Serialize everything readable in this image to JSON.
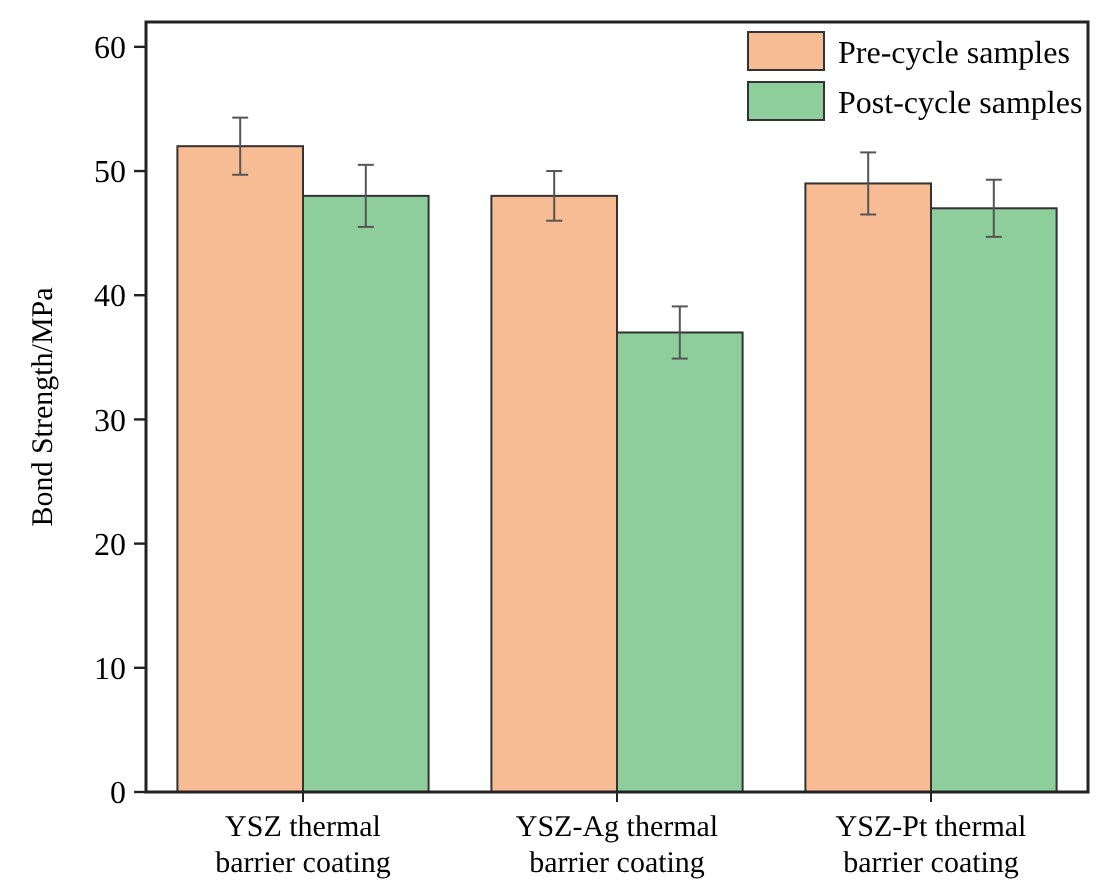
{
  "chart_data": {
    "type": "bar",
    "ylabel": "Bond Strength/MPa",
    "categories": [
      "YSZ thermal barrier coating",
      "YSZ-Ag thermal barrier coating",
      "YSZ-Pt thermal barrier coating"
    ],
    "series": [
      {
        "name": "Pre-cycle samples",
        "color": "#f7bc94",
        "values": [
          52,
          48,
          49
        ],
        "errors": [
          2.3,
          2,
          2.5
        ]
      },
      {
        "name": "Post-cycle samples",
        "color": "#8ecd9c",
        "values": [
          48,
          37,
          47
        ],
        "errors": [
          2.5,
          2.1,
          2.3
        ]
      }
    ],
    "ylim": [
      0,
      62
    ],
    "yticks": [
      0,
      10,
      20,
      30,
      40,
      50,
      60
    ],
    "legend": "top right"
  }
}
